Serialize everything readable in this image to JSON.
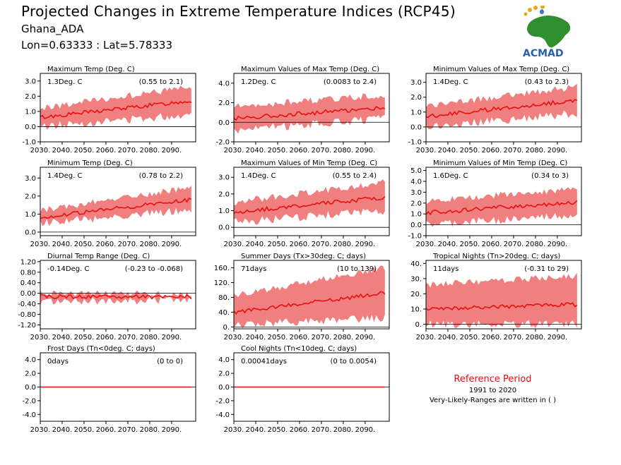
{
  "header": {
    "title": "Projected Changes in Extreme Temperature Indices (RCP45)",
    "location": "Ghana_ADA",
    "coords": "Lon=0.63333 : Lat=5.78333"
  },
  "logo": {
    "text": "ACMAD"
  },
  "reference": {
    "title": "Reference Period",
    "years": "1991 to 2020",
    "note": "Very-Likely-Ranges are written in ( )"
  },
  "colors": {
    "band": "#f08080",
    "line": "#e8100e",
    "zero": "#000000",
    "title": "#e01010"
  },
  "chart_data": [
    {
      "type": "area",
      "title": "Maximum Temp (Deg. C)",
      "summary": "1.3Deg. C",
      "range": "(0.55 to 2.1)",
      "xticks": [
        "2030.",
        "2040.",
        "2050.",
        "2060.",
        "2070.",
        "2080.",
        "2090."
      ],
      "yticks": [
        "-1.0",
        "0.0",
        "1.0",
        "2.0",
        "3.0"
      ],
      "ylim": [
        -1.0,
        3.5
      ],
      "xlim": [
        2030,
        2099
      ],
      "mean_start": 0.6,
      "mean_end": 1.7,
      "band_low_start": 0.0,
      "band_low_end": 0.8,
      "band_high_start": 1.2,
      "band_high_end": 2.6
    },
    {
      "type": "area",
      "title": "Maximum Values of Max Temp (Deg. C)",
      "summary": "1.2Deg. C",
      "range": "(0.0083 to 2.4)",
      "xticks": [
        "2030.",
        "2040.",
        "2050.",
        "2060.",
        "2070.",
        "2080.",
        "2090."
      ],
      "yticks": [
        "-2.0",
        "0.0",
        "2.0",
        "4.0"
      ],
      "ylim": [
        -2.0,
        5.0
      ],
      "xlim": [
        2030,
        2099
      ],
      "mean_start": 0.4,
      "mean_end": 1.5,
      "band_low_start": -0.8,
      "band_low_end": 0.4,
      "band_high_start": 1.6,
      "band_high_end": 2.8
    },
    {
      "type": "area",
      "title": "Minimum Values of Max Temp (Deg. C)",
      "summary": "1.4Deg. C",
      "range": "(0.43 to 2.3)",
      "xticks": [
        "2030.",
        "2040.",
        "2050.",
        "2060.",
        "2070.",
        "2080.",
        "2090."
      ],
      "yticks": [
        "-1.0",
        "0.0",
        "1.0",
        "2.0",
        "3.0"
      ],
      "ylim": [
        -1.0,
        3.6
      ],
      "xlim": [
        2030,
        2099
      ],
      "mean_start": 0.7,
      "mean_end": 1.8,
      "band_low_start": 0.0,
      "band_low_end": 0.9,
      "band_high_start": 1.4,
      "band_high_end": 2.7
    },
    {
      "type": "area",
      "title": "Minimum Temp (Deg. C)",
      "summary": "1.4Deg. C",
      "range": "(0.78 to 2.2)",
      "xticks": [
        "2030.",
        "2040.",
        "2050.",
        "2060.",
        "2070.",
        "2080.",
        "2090."
      ],
      "yticks": [
        "0.0",
        "1.0",
        "2.0",
        "3.0"
      ],
      "ylim": [
        -0.2,
        3.6
      ],
      "xlim": [
        2030,
        2099
      ],
      "mean_start": 0.8,
      "mean_end": 1.8,
      "band_low_start": 0.5,
      "band_low_end": 1.2,
      "band_high_start": 1.2,
      "band_high_end": 2.5
    },
    {
      "type": "area",
      "title": "Maximum Values of Min Temp (Deg. C)",
      "summary": "1.4Deg. C",
      "range": "(0.55 to 2.4)",
      "xticks": [
        "2030.",
        "2040.",
        "2050.",
        "2060.",
        "2070.",
        "2080.",
        "2090."
      ],
      "yticks": [
        "0.0",
        "1.0",
        "2.0",
        "3.0"
      ],
      "ylim": [
        -0.5,
        3.6
      ],
      "xlim": [
        2030,
        2099
      ],
      "mean_start": 0.9,
      "mean_end": 1.8,
      "band_low_start": 0.3,
      "band_low_end": 1.0,
      "band_high_start": 1.5,
      "band_high_end": 2.7
    },
    {
      "type": "area",
      "title": "Minimum Values of Min Temp (Deg. C)",
      "summary": "1.6Deg. C",
      "range": "(0.34 to 3)",
      "xticks": [
        "2030.",
        "2040.",
        "2050.",
        "2060.",
        "2070.",
        "2080.",
        "2090."
      ],
      "yticks": [
        "-1.0",
        "0.0",
        "1.0",
        "2.0",
        "3.0",
        "4.0",
        "5.0"
      ],
      "ylim": [
        -1.0,
        5.3
      ],
      "xlim": [
        2030,
        2099
      ],
      "mean_start": 1.1,
      "mean_end": 2.1,
      "band_low_start": 0.0,
      "band_low_end": 0.9,
      "band_high_start": 2.2,
      "band_high_end": 3.3
    },
    {
      "type": "area",
      "title": "Diurnal Temp Range (Deg. C)",
      "summary": "-0.14Deg. C",
      "range": "(-0.23 to -0.068)",
      "xticks": [
        "2030.",
        "2040.",
        "2050.",
        "2060.",
        "2070.",
        "2080.",
        "2090."
      ],
      "yticks": [
        "-1.20",
        "-0.80",
        "-0.40",
        "0.00",
        "0.40",
        "0.80",
        "1.20"
      ],
      "ylim": [
        -1.35,
        1.25
      ],
      "xlim": [
        2030,
        2099
      ],
      "mean_start": -0.12,
      "mean_end": -0.14,
      "band_low_start": -0.32,
      "band_low_end": -0.24,
      "band_high_start": 0.02,
      "band_high_end": -0.04
    },
    {
      "type": "area",
      "title": "Summer Days (Tx>30deg. C; days)",
      "summary": "71days",
      "range": "(10 to 139)",
      "xticks": [
        "2030.",
        "2040.",
        "2050.",
        "2060.",
        "2070.",
        "2080.",
        "2090."
      ],
      "yticks": [
        "0.",
        "40.",
        "80.",
        "120.",
        "160."
      ],
      "ylim": [
        -5,
        180
      ],
      "xlim": [
        2030,
        2099
      ],
      "mean_start": 40,
      "mean_end": 92,
      "band_low_start": 5,
      "band_low_end": 25,
      "band_high_start": 85,
      "band_high_end": 160
    },
    {
      "type": "area",
      "title": "Tropical Nights (Tn>20deg. C; days)",
      "summary": "11days",
      "range": "(-0.31 to 29)",
      "xticks": [
        "2030.",
        "2040.",
        "2050.",
        "2060.",
        "2070.",
        "2080.",
        "2090."
      ],
      "yticks": [
        "0.",
        "10.",
        "20.",
        "30.",
        "40."
      ],
      "ylim": [
        -3,
        42
      ],
      "xlim": [
        2030,
        2099
      ],
      "mean_start": 10,
      "mean_end": 13,
      "band_low_start": 0,
      "band_low_end": 0,
      "band_high_start": 26,
      "band_high_end": 32
    },
    {
      "type": "line",
      "title": "Frost Days (Tn<0deg. C; days)",
      "summary": "0days",
      "range": "(0 to 0)",
      "xticks": [
        "2030.",
        "2040.",
        "2050.",
        "2060.",
        "2070.",
        "2080.",
        "2090."
      ],
      "yticks": [
        "-4.0",
        "-2.0",
        "0.0",
        "2.0",
        "4.0"
      ],
      "ylim": [
        -5.0,
        5.0
      ],
      "xlim": [
        2030,
        2099
      ],
      "mean_start": 0,
      "mean_end": 0,
      "band_low_start": 0,
      "band_low_end": 0,
      "band_high_start": 0,
      "band_high_end": 0
    },
    {
      "type": "line",
      "title": "Cool Nights (Tn<10deg. C; days)",
      "summary": "0.00041days",
      "range": "(0 to 0.0054)",
      "xticks": [
        "2030.",
        "2040.",
        "2050.",
        "2060.",
        "2070.",
        "2080.",
        "2090."
      ],
      "yticks": [
        "-4.0",
        "-2.0",
        "0.0",
        "2.0",
        "4.0"
      ],
      "ylim": [
        -5.0,
        5.0
      ],
      "xlim": [
        2030,
        2099
      ],
      "mean_start": 0,
      "mean_end": 0,
      "band_low_start": 0,
      "band_low_end": 0.01,
      "band_high_start": 0,
      "band_high_end": 0.01
    }
  ]
}
